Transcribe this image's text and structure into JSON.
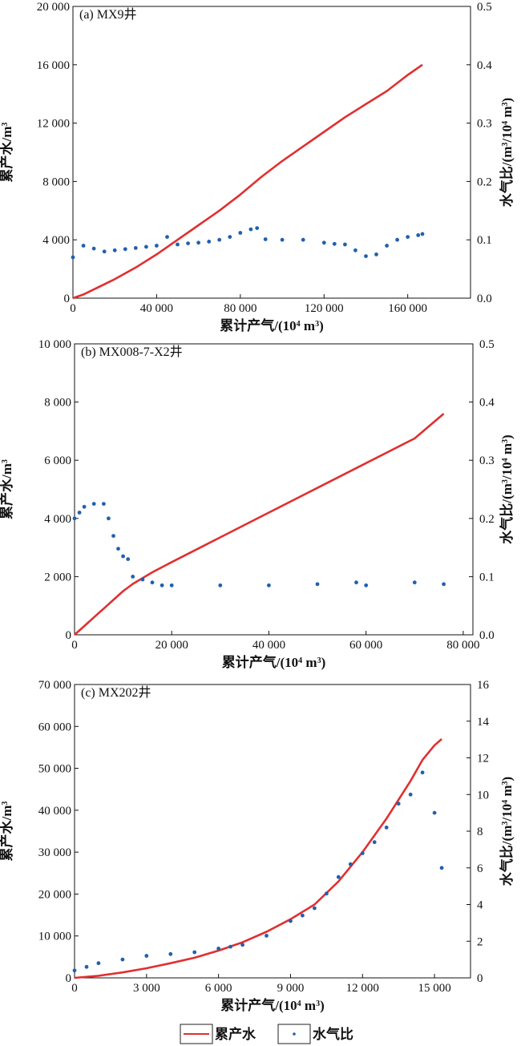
{
  "chart_data": [
    {
      "type": "line",
      "title": "(a) MX9井",
      "xlabel_main": "累计产气",
      "xlabel_unit": "/(10",
      "xlabel_exp": "4",
      "xlabel_tail": " m",
      "xlabel_exp2": "3",
      "xlabel_close": ")",
      "ylabel_left": "累产水/m",
      "ylabel_left_exp": "3",
      "ylabel_right_main": "水气比/(m",
      "ylabel_right_exp1": "3",
      "ylabel_right_mid": "/10",
      "ylabel_right_exp2": "4",
      "ylabel_right_tail": " m",
      "ylabel_right_exp3": "3",
      "ylabel_right_close": ")",
      "xlim": [
        0,
        190000
      ],
      "ylim_left": [
        0,
        20000
      ],
      "ylim_right": [
        0,
        0.5
      ],
      "xticks": [
        0,
        40000,
        80000,
        120000,
        160000
      ],
      "xticklabels": [
        "0",
        "40 000",
        "80 000",
        "120 000",
        "160 000"
      ],
      "yticks_left": [
        0,
        4000,
        8000,
        12000,
        16000,
        20000
      ],
      "yticklabels_left": [
        "0",
        "4 000",
        "8 000",
        "12 000",
        "16 000",
        "20 000"
      ],
      "yticks_right": [
        0.0,
        0.1,
        0.2,
        0.3,
        0.4,
        0.5
      ],
      "yticklabels_right": [
        "0.0",
        "0.1",
        "0.2",
        "0.3",
        "0.4",
        "0.5"
      ],
      "series": [
        {
          "name": "累产水",
          "axis": "left",
          "color": "#e03030",
          "x": [
            0,
            5000,
            10000,
            20000,
            30000,
            40000,
            50000,
            60000,
            70000,
            80000,
            90000,
            100000,
            110000,
            120000,
            130000,
            140000,
            150000,
            160000,
            167000
          ],
          "y": [
            0,
            250,
            600,
            1300,
            2100,
            3000,
            4000,
            5000,
            6000,
            7100,
            8300,
            9400,
            10400,
            11400,
            12400,
            13300,
            14200,
            15300,
            16000
          ]
        },
        {
          "name": "水气比",
          "axis": "right",
          "color": "#2060b0",
          "x": [
            0,
            5000,
            10000,
            15000,
            20000,
            25000,
            30000,
            35000,
            40000,
            45000,
            50000,
            55000,
            60000,
            65000,
            70000,
            75000,
            80000,
            85000,
            88000,
            92000,
            100000,
            110000,
            120000,
            125000,
            130000,
            135000,
            140000,
            145000,
            150000,
            155000,
            160000,
            165000,
            167000
          ],
          "y": [
            0.07,
            0.09,
            0.085,
            0.08,
            0.082,
            0.084,
            0.086,
            0.088,
            0.09,
            0.105,
            0.092,
            0.094,
            0.095,
            0.097,
            0.1,
            0.105,
            0.112,
            0.118,
            0.12,
            0.101,
            0.1,
            0.1,
            0.095,
            0.093,
            0.092,
            0.082,
            0.072,
            0.075,
            0.09,
            0.1,
            0.105,
            0.108,
            0.11
          ]
        }
      ]
    },
    {
      "type": "line",
      "title": "(b) MX008-7-X2井",
      "xlabel_main": "累计产气",
      "xlabel_unit": "/(10",
      "xlabel_exp": "4",
      "xlabel_tail": " m",
      "xlabel_exp2": "3",
      "xlabel_close": ")",
      "ylabel_left": "累产水/m",
      "ylabel_left_exp": "3",
      "ylabel_right_main": "水气比/(m",
      "ylabel_right_exp1": "3",
      "ylabel_right_mid": "/10",
      "ylabel_right_exp2": "4",
      "ylabel_right_tail": " m",
      "ylabel_right_exp3": "3",
      "ylabel_right_close": ")",
      "xlim": [
        0,
        82000
      ],
      "ylim_left": [
        0,
        10000
      ],
      "ylim_right": [
        0,
        0.5
      ],
      "xticks": [
        0,
        20000,
        40000,
        60000,
        80000
      ],
      "xticklabels": [
        "0",
        "20 000",
        "40 000",
        "60 000",
        "80 000"
      ],
      "yticks_left": [
        0,
        2000,
        4000,
        6000,
        8000,
        10000
      ],
      "yticklabels_left": [
        "0",
        "2 000",
        "4 000",
        "6 000",
        "8 000",
        "10 000"
      ],
      "yticks_right": [
        0.0,
        0.1,
        0.2,
        0.3,
        0.4,
        0.5
      ],
      "yticklabels_right": [
        "0.0",
        "0.1",
        "0.2",
        "0.3",
        "0.4",
        "0.5"
      ],
      "series": [
        {
          "name": "累产水",
          "axis": "left",
          "color": "#e03030",
          "x": [
            0,
            2000,
            4000,
            6000,
            8000,
            10000,
            12000,
            16000,
            20000,
            30000,
            40000,
            50000,
            60000,
            70000,
            76000
          ],
          "y": [
            0,
            300,
            600,
            900,
            1200,
            1500,
            1750,
            2150,
            2500,
            3350,
            4200,
            5050,
            5900,
            6750,
            7600
          ]
        },
        {
          "name": "水气比",
          "axis": "right",
          "color": "#2060b0",
          "x": [
            0,
            1000,
            2000,
            4000,
            6000,
            7000,
            8000,
            9000,
            10000,
            11000,
            12000,
            14000,
            16000,
            18000,
            20000,
            30000,
            40000,
            50000,
            58000,
            60000,
            70000,
            76000
          ],
          "y": [
            0.2,
            0.21,
            0.22,
            0.225,
            0.225,
            0.2,
            0.17,
            0.148,
            0.135,
            0.13,
            0.1,
            0.095,
            0.09,
            0.085,
            0.085,
            0.085,
            0.085,
            0.087,
            0.09,
            0.085,
            0.09,
            0.087
          ]
        }
      ]
    },
    {
      "type": "line",
      "title": "(c) MX202井",
      "xlabel_main": "累计产气",
      "xlabel_unit": "/(10",
      "xlabel_exp": "4",
      "xlabel_tail": " m",
      "xlabel_exp2": "3",
      "xlabel_close": ")",
      "ylabel_left": "累产水/m",
      "ylabel_left_exp": "3",
      "ylabel_right_main": "水气比/(m",
      "ylabel_right_exp1": "3",
      "ylabel_right_mid": "/10",
      "ylabel_right_exp2": "4",
      "ylabel_right_tail": " m",
      "ylabel_right_exp3": "3",
      "ylabel_right_close": ")",
      "xlim": [
        0,
        16500
      ],
      "ylim_left": [
        0,
        70000
      ],
      "ylim_right": [
        0,
        16
      ],
      "xticks": [
        0,
        3000,
        6000,
        9000,
        12000,
        15000
      ],
      "xticklabels": [
        "0",
        "3 000",
        "6 000",
        "9 000",
        "12 000",
        "15 000"
      ],
      "yticks_left": [
        0,
        10000,
        20000,
        30000,
        40000,
        50000,
        60000,
        70000
      ],
      "yticklabels_left": [
        "0",
        "10 000",
        "20 000",
        "30 000",
        "40 000",
        "50 000",
        "60 000",
        "70 000"
      ],
      "yticks_right": [
        0,
        2,
        4,
        6,
        8,
        10,
        12,
        14,
        16
      ],
      "yticklabels_right": [
        "0",
        "2",
        "4",
        "6",
        "8",
        "10",
        "12",
        "14",
        "16"
      ],
      "series": [
        {
          "name": "累产水",
          "axis": "left",
          "color": "#e03030",
          "x": [
            0,
            1000,
            2000,
            3000,
            4000,
            5000,
            6000,
            7000,
            8000,
            9000,
            10000,
            11000,
            12000,
            13000,
            14000,
            14500,
            15000,
            15300
          ],
          "y": [
            0,
            500,
            1300,
            2300,
            3500,
            4800,
            6500,
            8500,
            11000,
            14000,
            17500,
            23000,
            30000,
            38000,
            47000,
            52000,
            55500,
            57000
          ]
        },
        {
          "name": "水气比",
          "axis": "right",
          "color": "#2060b0",
          "x": [
            0,
            500,
            1000,
            2000,
            3000,
            4000,
            5000,
            6000,
            6500,
            7000,
            8000,
            9000,
            9500,
            10000,
            10500,
            11000,
            11500,
            12000,
            12500,
            13000,
            13500,
            14000,
            14500,
            15000,
            15300
          ],
          "y": [
            0.4,
            0.6,
            0.8,
            1.0,
            1.2,
            1.3,
            1.4,
            1.6,
            1.7,
            1.8,
            2.3,
            3.1,
            3.4,
            3.8,
            4.6,
            5.5,
            6.2,
            6.8,
            7.4,
            8.2,
            9.5,
            10.0,
            11.2,
            9.0,
            6.0
          ]
        }
      ]
    }
  ],
  "legend": {
    "items": [
      {
        "label": "累产水",
        "color": "#e03030",
        "kind": "line"
      },
      {
        "label": "水气比",
        "color": "#2060b0",
        "kind": "dot"
      }
    ]
  }
}
